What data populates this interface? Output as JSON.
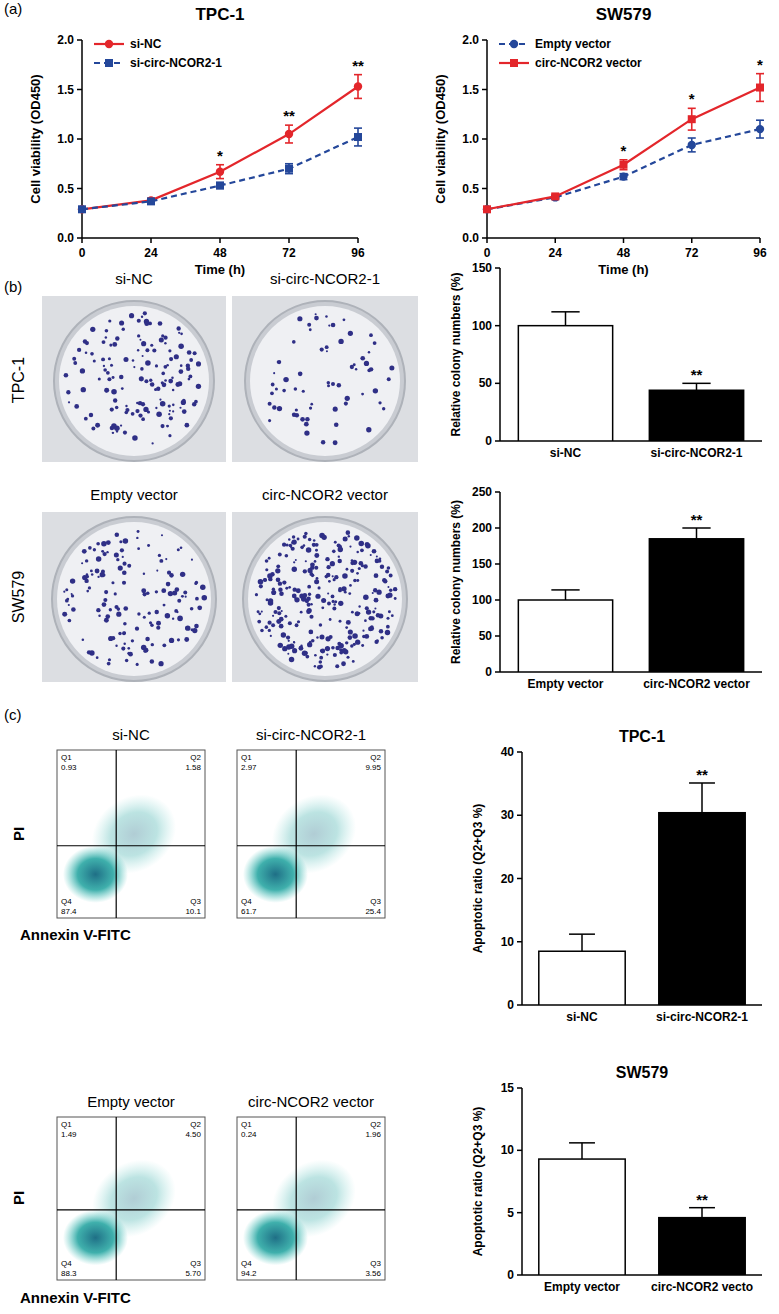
{
  "figure": {
    "panel_labels": [
      "(a)",
      "(b)",
      "(c)"
    ]
  },
  "chart_data": [
    {
      "type": "line",
      "title": "TPC-1",
      "x_label": "Time (h)",
      "y_label": "Cell viability (OD450)",
      "x": [
        0,
        24,
        48,
        72,
        96
      ],
      "xlim": [
        0,
        96
      ],
      "xticks": [
        0,
        24,
        48,
        72,
        96
      ],
      "ylim": [
        0,
        2
      ],
      "yticks": [
        {
          "value": 0,
          "label": "0.0"
        },
        {
          "value": 0.5,
          "label": "0.5"
        },
        {
          "value": 1,
          "label": "1.0"
        },
        {
          "value": 1.5,
          "label": "1.5"
        },
        {
          "value": 2,
          "label": "2.0"
        }
      ],
      "legend": "top-left",
      "series": [
        {
          "name": "si-NC",
          "color": "#e3262b",
          "line_style": "solid",
          "marker": "circle",
          "values": [
            0.29,
            0.38,
            0.67,
            1.05,
            1.53
          ],
          "errors": [
            0.02,
            0.02,
            0.07,
            0.09,
            0.12
          ]
        },
        {
          "name": "si-circ-NCOR2-1",
          "color": "#24479a",
          "line_style": "dashed",
          "marker": "square",
          "values": [
            0.29,
            0.37,
            0.53,
            0.7,
            1.02
          ],
          "errors": [
            0.02,
            0.02,
            0.03,
            0.05,
            0.09
          ]
        }
      ],
      "annotations": [
        {
          "x": 48,
          "text": "*"
        },
        {
          "x": 72,
          "text": "**"
        },
        {
          "x": 96,
          "text": "**"
        }
      ]
    },
    {
      "type": "line",
      "title": "SW579",
      "x_label": "Time (h)",
      "y_label": "Cell viability (OD450)",
      "x": [
        0,
        24,
        48,
        72,
        96
      ],
      "xlim": [
        0,
        96
      ],
      "xticks": [
        0,
        24,
        48,
        72,
        96
      ],
      "ylim": [
        0,
        2
      ],
      "yticks": [
        {
          "value": 0,
          "label": "0.0"
        },
        {
          "value": 0.5,
          "label": "0.5"
        },
        {
          "value": 1,
          "label": "1.0"
        },
        {
          "value": 1.5,
          "label": "1.5"
        },
        {
          "value": 2,
          "label": "2.0"
        }
      ],
      "legend": "top-left",
      "series": [
        {
          "name": "Empty vector",
          "color": "#24479a",
          "line_style": "dashed",
          "marker": "circle",
          "values": [
            0.29,
            0.41,
            0.62,
            0.94,
            1.1
          ],
          "errors": [
            0.02,
            0.02,
            0.03,
            0.07,
            0.09
          ]
        },
        {
          "name": "circ-NCOR2 vector",
          "color": "#e3262b",
          "line_style": "solid",
          "marker": "square",
          "values": [
            0.29,
            0.42,
            0.74,
            1.2,
            1.52
          ],
          "errors": [
            0.02,
            0.02,
            0.05,
            0.11,
            0.14
          ]
        }
      ],
      "annotations": [
        {
          "x": 48,
          "text": "*"
        },
        {
          "x": 72,
          "text": "*"
        },
        {
          "x": 96,
          "text": "*"
        }
      ]
    },
    {
      "type": "bar",
      "y_label": "Relative colony numbers (%)",
      "categories": [
        "si-NC",
        "si-circ-NCOR2-1"
      ],
      "values": [
        100,
        44
      ],
      "errors": [
        12,
        6
      ],
      "colors": [
        "#ffffff",
        "#000000"
      ],
      "ylim": [
        0,
        150
      ],
      "yticks": [
        0,
        50,
        100,
        150
      ],
      "annotations": [
        {
          "category": "si-circ-NCOR2-1",
          "text": "**"
        }
      ]
    },
    {
      "type": "bar",
      "y_label": "Relative colony numbers (%)",
      "categories": [
        "Empty vector",
        "circ-NCOR2 vector"
      ],
      "values": [
        100,
        185
      ],
      "errors": [
        14,
        15
      ],
      "colors": [
        "#ffffff",
        "#000000"
      ],
      "ylim": [
        0,
        250
      ],
      "yticks": [
        0,
        50,
        100,
        150,
        200,
        250
      ],
      "annotations": [
        {
          "category": "circ-NCOR2 vector",
          "text": "**"
        }
      ]
    },
    {
      "type": "bar",
      "title": "TPC-1",
      "y_label": "Apoptotic ratio (Q2+Q3 %)",
      "categories": [
        "si-NC",
        "si-circ-NCOR2-1"
      ],
      "values": [
        8.5,
        30.4
      ],
      "errors": [
        2.7,
        4.7
      ],
      "colors": [
        "#ffffff",
        "#000000"
      ],
      "ylim": [
        0,
        40
      ],
      "yticks": [
        0,
        10,
        20,
        30,
        40
      ],
      "annotations": [
        {
          "category": "si-circ-NCOR2-1",
          "text": "**"
        }
      ]
    },
    {
      "type": "bar",
      "title": "SW579",
      "y_label": "Apoptotic ratio (Q2+Q3 %)",
      "categories": [
        "Empty vector",
        "circ-NCOR2 vecto"
      ],
      "values": [
        9.3,
        4.6
      ],
      "errors": [
        1.3,
        0.8
      ],
      "colors": [
        "#ffffff",
        "#000000"
      ],
      "ylim": [
        0,
        15
      ],
      "yticks": [
        0,
        5,
        10,
        15
      ],
      "annotations": [
        {
          "category": "circ-NCOR2 vecto",
          "text": "**"
        }
      ]
    }
  ],
  "colony_assays": [
    {
      "cell_line": "TPC-1",
      "conditions": [
        "si-NC",
        "si-circ-NCOR2-1"
      ]
    },
    {
      "cell_line": "SW579",
      "conditions": [
        "Empty vector",
        "circ-NCOR2 vector"
      ]
    }
  ],
  "flow_cytometry": [
    {
      "x_label": "Annexin V-FITC",
      "y_label": "PI",
      "plots": [
        {
          "condition": "si-NC",
          "quadrants": [
            {
              "name": "Q1",
              "value": 0.93
            },
            {
              "name": "Q2",
              "value": 1.58
            },
            {
              "name": "Q4",
              "value": 87.4
            },
            {
              "name": "Q3",
              "value": 10.1
            }
          ]
        },
        {
          "condition": "si-circ-NCOR2-1",
          "quadrants": [
            {
              "name": "Q1",
              "value": 2.97
            },
            {
              "name": "Q2",
              "value": 9.95
            },
            {
              "name": "Q4",
              "value": 61.7
            },
            {
              "name": "Q3",
              "value": 25.4
            }
          ]
        }
      ]
    },
    {
      "x_label": "Annexin V-FITC",
      "y_label": "PI",
      "plots": [
        {
          "condition": "Empty vector",
          "quadrants": [
            {
              "name": "Q1",
              "value": 1.49
            },
            {
              "name": "Q2",
              "value": 4.5,
              "label": "4.50"
            },
            {
              "name": "Q4",
              "value": 88.3
            },
            {
              "name": "Q3",
              "value": 5.7,
              "label": "5.70"
            }
          ]
        },
        {
          "condition": "circ-NCOR2 vector",
          "quadrants": [
            {
              "name": "Q1",
              "value": 0.24
            },
            {
              "name": "Q2",
              "value": 1.96
            },
            {
              "name": "Q4",
              "value": 94.2
            },
            {
              "name": "Q3",
              "value": 3.56
            }
          ]
        }
      ]
    }
  ]
}
